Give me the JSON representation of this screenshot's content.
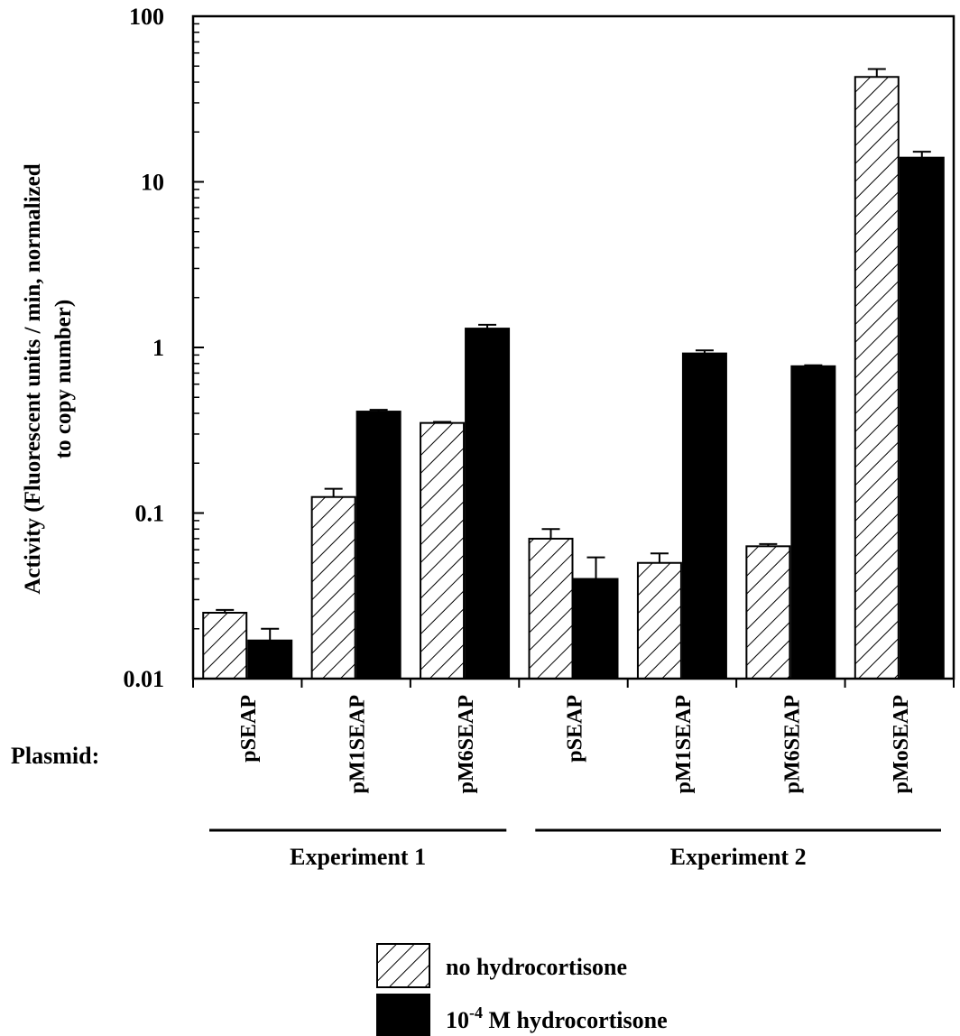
{
  "chart_data": {
    "type": "bar",
    "yscale": "log",
    "ylim": [
      0.01,
      100
    ],
    "ylabel_line1": "Activity (Fluorescent units / min, normalized",
    "ylabel_line2": "to copy number)",
    "yticks": [
      {
        "value": 0.01,
        "label": "0.01"
      },
      {
        "value": 0.1,
        "label": "0.1"
      },
      {
        "value": 1,
        "label": "1"
      },
      {
        "value": 10,
        "label": "10"
      },
      {
        "value": 100,
        "label": "100"
      }
    ],
    "x_axis_title": "Plasmid:",
    "categories": [
      "pSEAP",
      "pM1SEAP",
      "pM6SEAP",
      "pSEAP",
      "pM1SEAP",
      "pM6SEAP",
      "pMoSEAP"
    ],
    "groups": [
      {
        "label": "Experiment 1",
        "span": [
          0,
          2
        ]
      },
      {
        "label": "Experiment 2",
        "span": [
          3,
          6
        ]
      }
    ],
    "series": [
      {
        "name": "no hydrocortisone",
        "fill": "hatch",
        "values": [
          0.025,
          0.125,
          0.35,
          0.07,
          0.05,
          0.063,
          43
        ],
        "error_upper": [
          0.026,
          0.14,
          0.355,
          0.08,
          0.057,
          0.065,
          48
        ]
      },
      {
        "name": "10-4 M hydrocortisone",
        "fill": "#000000",
        "values": [
          0.017,
          0.41,
          1.3,
          0.04,
          0.92,
          0.77,
          14
        ],
        "error_upper": [
          0.02,
          0.42,
          1.37,
          0.054,
          0.96,
          0.78,
          15.2
        ]
      }
    ],
    "legend": {
      "position": "bottom-center",
      "items": [
        {
          "text": "no hydrocortisone"
        },
        {
          "prefix": "10",
          "sup": "-4",
          "suffix": " M hydrocortisone"
        }
      ]
    }
  }
}
